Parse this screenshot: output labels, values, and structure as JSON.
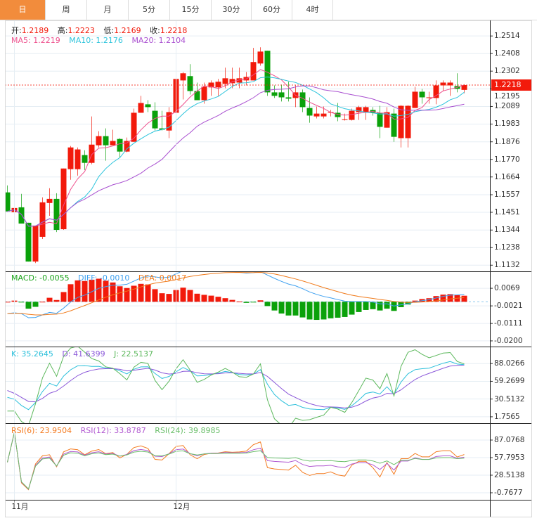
{
  "tabs": [
    {
      "label": "日",
      "active": true
    },
    {
      "label": "周"
    },
    {
      "label": "月"
    },
    {
      "label": "5分"
    },
    {
      "label": "15分"
    },
    {
      "label": "30分"
    },
    {
      "label": "60分"
    },
    {
      "label": "4时"
    }
  ],
  "legend": {
    "ohlc": {
      "open_label": "开:",
      "open": "1.2189",
      "high_label": "高:",
      "high": "1.2223",
      "low_label": "低:",
      "low": "1.2169",
      "close_label": "收:",
      "close": "1.2218"
    },
    "ma": {
      "ma5": "MA5: 1.2219",
      "ma10": "MA10: 1.2176",
      "ma20": "MA20: 1.2104"
    },
    "macd": {
      "macd": "MACD: -0.0055",
      "diff": "DIFF: -0.0010",
      "dea": "DEA: 0.0017"
    },
    "kdj": {
      "k": "K: 35.2645",
      "d": "D: 41.6399",
      "j": "J: 22.5137"
    },
    "rsi": {
      "rsi6": "RSI(6): 23.9504",
      "rsi12": "RSI(12): 33.8787",
      "rsi24": "RSI(24): 39.8985"
    }
  },
  "current_price": "1.2218",
  "colors": {
    "up": "#f21a0b",
    "down": "#0aa10a",
    "accent": "#f28c3c",
    "ma5": "#ee4f8c",
    "ma10": "#2cc4dc",
    "ma20": "#a94fd0",
    "diff": "#3ea0f0",
    "dea": "#f07a1a",
    "k": "#2cc0db",
    "d": "#8a57d9",
    "j": "#5cb85c",
    "rsi6": "#f47b20",
    "rsi12": "#b158d1",
    "rsi24": "#6bbf6b"
  },
  "chart_data": {
    "type": "candlestick",
    "x_labels": [
      {
        "index": 1,
        "label": "11月"
      },
      {
        "index": 24,
        "label": "12月"
      }
    ],
    "price_axis": {
      "ticks": [
        "1.2514",
        "1.2408",
        "1.2302",
        "1.2195",
        "1.2089",
        "1.1983",
        "1.1876",
        "1.1770",
        "1.1664",
        "1.1557",
        "1.1451",
        "1.1344",
        "1.1238",
        "1.1132"
      ],
      "ylim": [
        1.1095,
        1.2608
      ]
    },
    "macd_axis": {
      "ticks": [
        "0.0069",
        "-0.0021",
        "-0.0111",
        "-0.0200"
      ],
      "ylim": [
        -0.0229,
        0.0152
      ]
    },
    "kdj_axis": {
      "ticks": [
        "88.0266",
        "59.2699",
        "30.5132",
        "1.7565"
      ],
      "ylim": [
        -8.6,
        114.5
      ]
    },
    "rsi_axis": {
      "ticks": [
        "87.0768",
        "57.7953",
        "28.5138",
        "-0.7677"
      ],
      "ylim": [
        -12.5,
        114
      ]
    },
    "ma_periods": [
      5,
      10,
      20
    ],
    "ohlc": [
      [
        1.1571,
        1.1613,
        1.1456,
        1.1456
      ],
      [
        1.1452,
        1.1566,
        1.1434,
        1.1477
      ],
      [
        1.1481,
        1.1562,
        1.1383,
        1.1383
      ],
      [
        1.1388,
        1.1388,
        1.1154,
        1.1154
      ],
      [
        1.1154,
        1.1371,
        1.1145,
        1.1371
      ],
      [
        1.1303,
        1.1541,
        1.129,
        1.1511
      ],
      [
        1.1507,
        1.1596,
        1.143,
        1.1532
      ],
      [
        1.1532,
        1.1566,
        1.1332,
        1.1345
      ],
      [
        1.1349,
        1.1715,
        1.1345,
        1.1715
      ],
      [
        1.1711,
        1.1851,
        1.1647,
        1.1842
      ],
      [
        1.1711,
        1.1842,
        1.1672,
        1.183
      ],
      [
        1.1796,
        1.1825,
        1.1706,
        1.1749
      ],
      [
        1.1749,
        1.2029,
        1.174,
        1.1859
      ],
      [
        1.1855,
        1.194,
        1.1842,
        1.191
      ],
      [
        1.191,
        1.1957,
        1.1762,
        1.1855
      ],
      [
        1.1855,
        1.1949,
        1.1855,
        1.1881
      ],
      [
        1.1893,
        1.1898,
        1.1779,
        1.1817
      ],
      [
        1.1817,
        1.1902,
        1.1813,
        1.1881
      ],
      [
        1.1876,
        1.2076,
        1.1876,
        1.2051
      ],
      [
        1.2051,
        1.2153,
        1.2051,
        1.211
      ],
      [
        1.2102,
        1.2127,
        1.2055,
        1.2085
      ],
      [
        1.2063,
        1.2114,
        1.1944,
        1.1957
      ],
      [
        1.1957,
        1.2063,
        1.1944,
        1.1949
      ],
      [
        1.1944,
        1.2085,
        1.1898,
        1.2055
      ],
      [
        1.2051,
        1.231,
        1.2051,
        1.2255
      ],
      [
        1.2246,
        1.2297,
        1.2131,
        1.2289
      ],
      [
        1.2272,
        1.2344,
        1.2161,
        1.2182
      ],
      [
        1.2182,
        1.2233,
        1.2127,
        1.2127
      ],
      [
        1.2127,
        1.2233,
        1.2106,
        1.2208
      ],
      [
        1.2204,
        1.2246,
        1.2153,
        1.2233
      ],
      [
        1.2204,
        1.2255,
        1.2153,
        1.2238
      ],
      [
        1.2225,
        1.2323,
        1.2199,
        1.2259
      ],
      [
        1.2229,
        1.2323,
        1.2199,
        1.2255
      ],
      [
        1.2233,
        1.2323,
        1.2199,
        1.2259
      ],
      [
        1.2246,
        1.2297,
        1.2216,
        1.2267
      ],
      [
        1.2246,
        1.2442,
        1.2246,
        1.2357
      ],
      [
        1.2348,
        1.2446,
        1.2335,
        1.242
      ],
      [
        1.2425,
        1.2425,
        1.2153,
        1.2174
      ],
      [
        1.2174,
        1.2216,
        1.214,
        1.2153
      ],
      [
        1.2174,
        1.2221,
        1.2119,
        1.2144
      ],
      [
        1.2144,
        1.2238,
        1.2119,
        1.2136
      ],
      [
        1.214,
        1.2216,
        1.2085,
        1.2174
      ],
      [
        1.2174,
        1.2191,
        1.2055,
        1.2085
      ],
      [
        1.208,
        1.2144,
        1.1991,
        1.2034
      ],
      [
        1.2029,
        1.2089,
        1.2017,
        1.2046
      ],
      [
        1.2029,
        1.2089,
        1.2017,
        1.2046
      ],
      [
        1.2051,
        1.2068,
        1.2029,
        1.2055
      ],
      [
        1.2051,
        1.211,
        1.2,
        1.2025
      ],
      [
        1.2008,
        1.2046,
        1.2004,
        1.2012
      ],
      [
        1.2008,
        1.2076,
        1.2004,
        1.2063
      ],
      [
        1.2055,
        1.2093,
        1.2008,
        1.2085
      ],
      [
        1.2055,
        1.2093,
        1.2008,
        1.2085
      ],
      [
        1.2068,
        1.2085,
        1.2034,
        1.2051
      ],
      [
        1.2051,
        1.2093,
        1.1898,
        1.1966
      ],
      [
        1.1961,
        1.2085,
        1.1961,
        1.2055
      ],
      [
        1.2046,
        1.2076,
        1.1876,
        1.1906
      ],
      [
        1.1898,
        1.2097,
        1.1842,
        1.2093
      ],
      [
        1.1898,
        1.2097,
        1.1842,
        1.2093
      ],
      [
        1.208,
        1.2208,
        1.208,
        1.2178
      ],
      [
        1.2178,
        1.2195,
        1.2106,
        1.2144
      ],
      [
        1.214,
        1.2178,
        1.2106,
        1.2144
      ],
      [
        1.214,
        1.2246,
        1.2102,
        1.2216
      ],
      [
        1.2216,
        1.2246,
        1.2182,
        1.2233
      ],
      [
        1.2216,
        1.2246,
        1.2153,
        1.2233
      ],
      [
        1.2212,
        1.2289,
        1.2174,
        1.2195
      ],
      [
        1.2189,
        1.2223,
        1.2169,
        1.2218
      ]
    ]
  }
}
